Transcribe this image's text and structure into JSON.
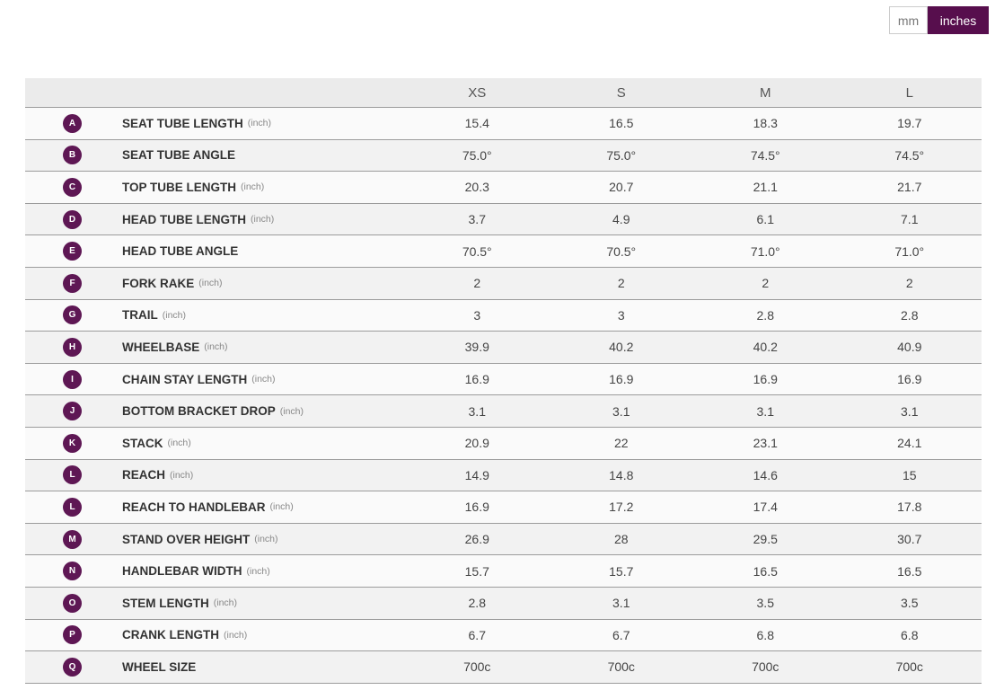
{
  "unit_toggle": {
    "mm_label": "mm",
    "inches_label": "inches",
    "selected": "inches"
  },
  "colors": {
    "accent_badge": "#5e1754",
    "accent_button": "#570e4d",
    "header_bg": "#ebebeb",
    "row_odd_bg": "#fafafa",
    "row_even_bg": "#f2f2f2",
    "row_border": "#9c9c9c"
  },
  "table": {
    "columns": [
      "XS",
      "S",
      "M",
      "L"
    ],
    "rows": [
      {
        "badge": "A",
        "label": "SEAT TUBE LENGTH",
        "unit": "(inch)",
        "values": [
          "15.4",
          "16.5",
          "18.3",
          "19.7"
        ]
      },
      {
        "badge": "B",
        "label": "SEAT TUBE ANGLE",
        "unit": "",
        "values": [
          "75.0°",
          "75.0°",
          "74.5°",
          "74.5°"
        ]
      },
      {
        "badge": "C",
        "label": "TOP TUBE LENGTH",
        "unit": "(inch)",
        "values": [
          "20.3",
          "20.7",
          "21.1",
          "21.7"
        ]
      },
      {
        "badge": "D",
        "label": "HEAD TUBE LENGTH",
        "unit": "(inch)",
        "values": [
          "3.7",
          "4.9",
          "6.1",
          "7.1"
        ]
      },
      {
        "badge": "E",
        "label": "HEAD TUBE ANGLE",
        "unit": "",
        "values": [
          "70.5°",
          "70.5°",
          "71.0°",
          "71.0°"
        ]
      },
      {
        "badge": "F",
        "label": "FORK RAKE",
        "unit": "(inch)",
        "values": [
          "2",
          "2",
          "2",
          "2"
        ]
      },
      {
        "badge": "G",
        "label": "TRAIL",
        "unit": "(inch)",
        "values": [
          "3",
          "3",
          "2.8",
          "2.8"
        ]
      },
      {
        "badge": "H",
        "label": "WHEELBASE",
        "unit": "(inch)",
        "values": [
          "39.9",
          "40.2",
          "40.2",
          "40.9"
        ]
      },
      {
        "badge": "I",
        "label": "CHAIN STAY LENGTH",
        "unit": "(inch)",
        "values": [
          "16.9",
          "16.9",
          "16.9",
          "16.9"
        ]
      },
      {
        "badge": "J",
        "label": "BOTTOM BRACKET DROP",
        "unit": "(inch)",
        "values": [
          "3.1",
          "3.1",
          "3.1",
          "3.1"
        ]
      },
      {
        "badge": "K",
        "label": "STACK",
        "unit": "(inch)",
        "values": [
          "20.9",
          "22",
          "23.1",
          "24.1"
        ]
      },
      {
        "badge": "L",
        "label": "REACH",
        "unit": "(inch)",
        "values": [
          "14.9",
          "14.8",
          "14.6",
          "15"
        ]
      },
      {
        "badge": "L",
        "label": "REACH TO HANDLEBAR",
        "unit": "(inch)",
        "values": [
          "16.9",
          "17.2",
          "17.4",
          "17.8"
        ]
      },
      {
        "badge": "M",
        "label": "STAND OVER HEIGHT",
        "unit": "(inch)",
        "values": [
          "26.9",
          "28",
          "29.5",
          "30.7"
        ]
      },
      {
        "badge": "N",
        "label": "HANDLEBAR WIDTH",
        "unit": "(inch)",
        "values": [
          "15.7",
          "15.7",
          "16.5",
          "16.5"
        ]
      },
      {
        "badge": "O",
        "label": "STEM LENGTH",
        "unit": "(inch)",
        "values": [
          "2.8",
          "3.1",
          "3.5",
          "3.5"
        ]
      },
      {
        "badge": "P",
        "label": "CRANK LENGTH",
        "unit": "(inch)",
        "values": [
          "6.7",
          "6.7",
          "6.8",
          "6.8"
        ]
      },
      {
        "badge": "Q",
        "label": "WHEEL SIZE",
        "unit": "",
        "values": [
          "700c",
          "700c",
          "700c",
          "700c"
        ]
      }
    ]
  }
}
